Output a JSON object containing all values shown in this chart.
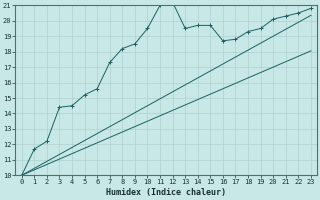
{
  "xlabel": "Humidex (Indice chaleur)",
  "bg_color": "#c8e8e8",
  "grid_color": "#b0d0d0",
  "line_color": "#1a6060",
  "xlim": [
    -0.5,
    23.5
  ],
  "ylim": [
    10,
    21
  ],
  "x_ticks": [
    0,
    1,
    2,
    3,
    4,
    5,
    6,
    7,
    8,
    9,
    10,
    11,
    12,
    13,
    14,
    15,
    16,
    17,
    18,
    19,
    20,
    21,
    22,
    23
  ],
  "y_ticks": [
    10,
    11,
    12,
    13,
    14,
    15,
    16,
    17,
    18,
    19,
    20,
    21
  ],
  "curve1_x": [
    0,
    1,
    2,
    3,
    4,
    5,
    6,
    7,
    8,
    9,
    10,
    11,
    12,
    13,
    14,
    15,
    16,
    17,
    18,
    19,
    20,
    21,
    22,
    23
  ],
  "curve1_y": [
    10.0,
    11.7,
    12.2,
    14.4,
    14.5,
    15.2,
    15.6,
    17.3,
    18.2,
    18.5,
    19.5,
    21.0,
    21.2,
    19.5,
    19.7,
    19.7,
    18.7,
    18.8,
    19.3,
    19.5,
    20.1,
    20.3,
    20.5,
    20.8
  ],
  "curve2_x": [
    0,
    1,
    2,
    3,
    4,
    5,
    6,
    7,
    8,
    9,
    10,
    11,
    12,
    13,
    14,
    15,
    16,
    17,
    18,
    19,
    20,
    21,
    22,
    23
  ],
  "curve2_y": [
    10.0,
    10.45,
    10.9,
    11.35,
    11.8,
    12.25,
    12.7,
    13.15,
    13.6,
    14.05,
    14.5,
    14.95,
    15.4,
    15.85,
    16.3,
    16.75,
    17.2,
    17.65,
    18.1,
    18.55,
    19.0,
    19.45,
    19.9,
    20.35
  ],
  "curve3_x": [
    0,
    1,
    2,
    3,
    4,
    5,
    6,
    7,
    8,
    9,
    10,
    11,
    12,
    13,
    14,
    15,
    16,
    17,
    18,
    19,
    20,
    21,
    22,
    23
  ],
  "curve3_y": [
    10.0,
    10.35,
    10.7,
    11.05,
    11.4,
    11.75,
    12.1,
    12.45,
    12.8,
    13.15,
    13.5,
    13.85,
    14.2,
    14.55,
    14.9,
    15.25,
    15.6,
    15.95,
    16.3,
    16.65,
    17.0,
    17.35,
    17.7,
    18.05
  ],
  "tick_fontsize": 5,
  "xlabel_fontsize": 6
}
